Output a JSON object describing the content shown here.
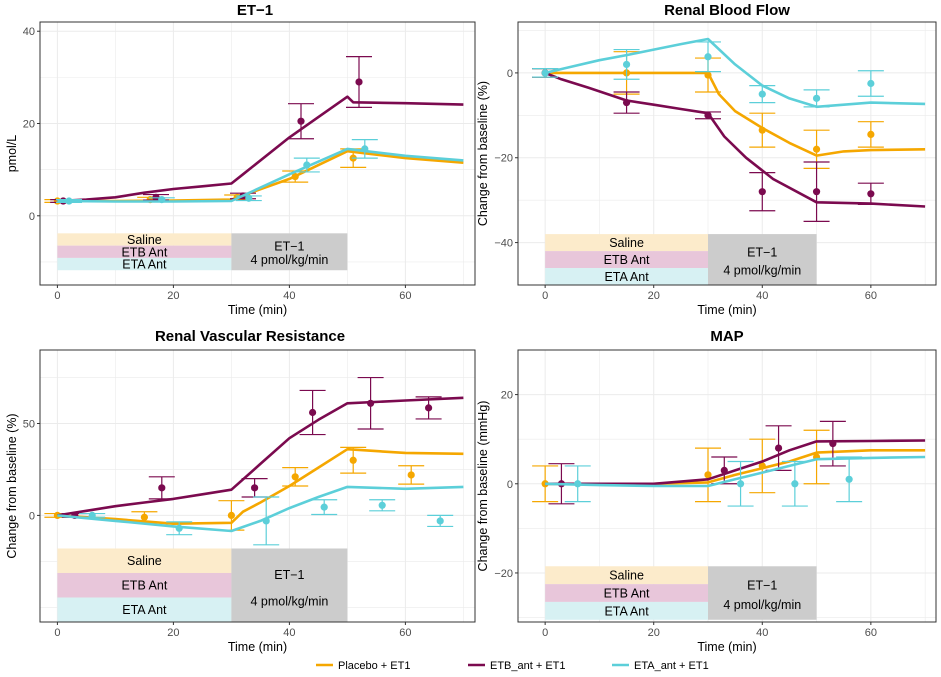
{
  "colors": {
    "placebo": "#F5A700",
    "etb": "#7B0A4F",
    "eta": "#5CCFD9",
    "saline_band": "#FCEBCB",
    "etb_band": "#E8C6DA",
    "eta_band": "#D7F1F3",
    "et1_band": "#CCCCCC",
    "grid": "#EBEBEB"
  },
  "legend": [
    {
      "key": "placebo",
      "label": "Placebo + ET1"
    },
    {
      "key": "etb",
      "label": "ETB_ant + ET1"
    },
    {
      "key": "eta",
      "label": "ETA_ant + ET1"
    }
  ],
  "treatment_box": {
    "saline": "Saline",
    "etb_ant": "ETB Ant",
    "eta_ant": "ETA Ant",
    "et1_line1": "ET−1",
    "et1_line2": "4 pmol/kg/min",
    "pre_start": 0,
    "pre_end": 30,
    "infusion_end": 50
  },
  "chart_data": [
    {
      "id": "et1",
      "type": "line",
      "title": "ET−1",
      "xlabel": "Time (min)",
      "ylabel": "pmol/L",
      "xlim": [
        -3,
        72
      ],
      "ylim": [
        -15,
        42
      ],
      "xticks": [
        0,
        20,
        40,
        60
      ],
      "yticks": [
        0,
        20,
        40
      ],
      "band_y": [
        -3.8,
        -11.8
      ],
      "series": [
        {
          "key": "placebo",
          "line": [
            [
              0,
              3.2
            ],
            [
              10,
              3.2
            ],
            [
              20,
              3.3
            ],
            [
              30,
              3.5
            ],
            [
              40,
              8
            ],
            [
              50,
              14
            ],
            [
              60,
              12.5
            ],
            [
              70,
              11.5
            ]
          ],
          "points": [
            [
              0,
              3.2,
              0.3
            ],
            [
              16,
              3.5,
              0.5
            ],
            [
              31,
              4,
              0.5
            ],
            [
              41,
              8.5,
              1.2
            ],
            [
              51,
              12.5,
              2
            ]
          ]
        },
        {
          "key": "etb",
          "line": [
            [
              0,
              3.2
            ],
            [
              5,
              3.5
            ],
            [
              10,
              4
            ],
            [
              15,
              5
            ],
            [
              20,
              5.8
            ],
            [
              25,
              6.4
            ],
            [
              30,
              7
            ],
            [
              32,
              9
            ],
            [
              40,
              17
            ],
            [
              50,
              25.8
            ],
            [
              51,
              24.6
            ],
            [
              60,
              24.4
            ],
            [
              70,
              24.1
            ]
          ],
          "points": [
            [
              1,
              3.2,
              0.3
            ],
            [
              17,
              4,
              0.6
            ],
            [
              32,
              4.3,
              0.6
            ],
            [
              42,
              20.5,
              3.8
            ],
            [
              52,
              29,
              5.5
            ]
          ]
        },
        {
          "key": "eta",
          "line": [
            [
              0,
              3.2
            ],
            [
              10,
              3.1
            ],
            [
              20,
              3.1
            ],
            [
              30,
              3.2
            ],
            [
              40,
              9
            ],
            [
              50,
              14.5
            ],
            [
              60,
              13
            ],
            [
              70,
              12
            ]
          ],
          "points": [
            [
              2,
              3.2,
              0.3
            ],
            [
              18,
              3.5,
              0.4
            ],
            [
              33,
              3.8,
              0.5
            ],
            [
              43,
              11,
              1.5
            ],
            [
              53,
              14.5,
              2
            ]
          ]
        }
      ]
    },
    {
      "id": "rbf",
      "type": "line",
      "title": "Renal Blood Flow",
      "xlabel": "Time (min)",
      "ylabel": "Change from baseline (%)",
      "xlim": [
        -5,
        72
      ],
      "ylim": [
        -50,
        12
      ],
      "xticks": [
        0,
        20,
        40,
        60
      ],
      "yticks": [
        0,
        -20,
        -40
      ],
      "band_y": [
        -38,
        -50
      ],
      "series": [
        {
          "key": "placebo",
          "line": [
            [
              0,
              0
            ],
            [
              10,
              0
            ],
            [
              20,
              0
            ],
            [
              30,
              0
            ],
            [
              32,
              -5
            ],
            [
              35,
              -9
            ],
            [
              40,
              -13
            ],
            [
              45,
              -16.5
            ],
            [
              50,
              -19.5
            ],
            [
              55,
              -18.5
            ],
            [
              60,
              -18.2
            ],
            [
              70,
              -18
            ]
          ],
          "points": [
            [
              0,
              0,
              1
            ],
            [
              15,
              0,
              5
            ],
            [
              30,
              -0.5,
              4
            ],
            [
              40,
              -13.5,
              4
            ],
            [
              50,
              -18,
              4.5
            ],
            [
              60,
              -14.5,
              3
            ]
          ]
        },
        {
          "key": "etb",
          "line": [
            [
              0,
              0
            ],
            [
              3,
              -1.5
            ],
            [
              8,
              -3.5
            ],
            [
              15,
              -6.5
            ],
            [
              20,
              -7.5
            ],
            [
              25,
              -8.5
            ],
            [
              30,
              -9.5
            ],
            [
              33,
              -15
            ],
            [
              37,
              -20
            ],
            [
              42,
              -25
            ],
            [
              50,
              -30.5
            ],
            [
              60,
              -30.8
            ],
            [
              70,
              -31.5
            ]
          ],
          "points": [
            [
              0,
              0,
              1
            ],
            [
              15,
              -7,
              2.5
            ],
            [
              30,
              -10,
              0.8
            ],
            [
              40,
              -28,
              4.5
            ],
            [
              50,
              -28,
              7
            ],
            [
              60,
              -28.5,
              2.5
            ]
          ]
        },
        {
          "key": "eta",
          "line": [
            [
              0,
              0
            ],
            [
              5,
              1.5
            ],
            [
              10,
              3
            ],
            [
              15,
              4.2
            ],
            [
              20,
              5.5
            ],
            [
              25,
              6.8
            ],
            [
              30,
              8
            ],
            [
              35,
              2
            ],
            [
              40,
              -3
            ],
            [
              45,
              -6
            ],
            [
              50,
              -8
            ],
            [
              60,
              -7
            ],
            [
              70,
              -7.3
            ]
          ],
          "points": [
            [
              0,
              0,
              1
            ],
            [
              15,
              2,
              3.5
            ],
            [
              30,
              3.8,
              3.5
            ],
            [
              40,
              -5,
              2
            ],
            [
              50,
              -6,
              2
            ],
            [
              60,
              -2.5,
              3
            ]
          ]
        }
      ]
    },
    {
      "id": "rvr",
      "type": "line",
      "title": "Renal Vascular Resistance",
      "xlabel": "Time (min)",
      "ylabel": "Change from baseline (%)",
      "xlim": [
        -3,
        72
      ],
      "ylim": [
        -58,
        90
      ],
      "xticks": [
        0,
        20,
        40,
        60
      ],
      "yticks": [
        0,
        50
      ],
      "band_y": [
        -18,
        -58
      ],
      "series": [
        {
          "key": "placebo",
          "line": [
            [
              0,
              0
            ],
            [
              10,
              -2
            ],
            [
              20,
              -4.5
            ],
            [
              30,
              -4
            ],
            [
              32,
              2
            ],
            [
              35,
              7
            ],
            [
              40,
              16
            ],
            [
              45,
              26
            ],
            [
              50,
              36
            ],
            [
              55,
              35
            ],
            [
              60,
              34
            ],
            [
              70,
              33.5
            ]
          ],
          "points": [
            [
              0,
              0,
              1
            ],
            [
              15,
              -1,
              3
            ],
            [
              30,
              0,
              8
            ],
            [
              41,
              21,
              5
            ],
            [
              51,
              30,
              7
            ],
            [
              61,
              22,
              5
            ]
          ]
        },
        {
          "key": "etb",
          "line": [
            [
              0,
              0
            ],
            [
              5,
              2.5
            ],
            [
              10,
              5
            ],
            [
              15,
              7
            ],
            [
              20,
              9
            ],
            [
              25,
              11.5
            ],
            [
              30,
              14
            ],
            [
              35,
              28
            ],
            [
              40,
              42
            ],
            [
              45,
              52
            ],
            [
              50,
              61
            ],
            [
              60,
              62.5
            ],
            [
              70,
              64
            ]
          ],
          "points": [
            [
              3,
              0,
              1
            ],
            [
              18,
              15,
              6
            ],
            [
              34,
              15,
              5
            ],
            [
              44,
              56,
              12
            ],
            [
              54,
              61,
              14
            ],
            [
              64,
              58.5,
              6
            ]
          ]
        },
        {
          "key": "eta",
          "line": [
            [
              0,
              0
            ],
            [
              10,
              -3
            ],
            [
              20,
              -6
            ],
            [
              30,
              -8.5
            ],
            [
              35,
              -3
            ],
            [
              40,
              4
            ],
            [
              45,
              10
            ],
            [
              50,
              15.5
            ],
            [
              60,
              14.5
            ],
            [
              70,
              15.5
            ]
          ],
          "points": [
            [
              6,
              0,
              1
            ],
            [
              21,
              -7,
              3.5
            ],
            [
              36,
              -3,
              13
            ],
            [
              46,
              4.5,
              4
            ],
            [
              56,
              5.5,
              3
            ],
            [
              66,
              -3,
              3
            ]
          ]
        }
      ]
    },
    {
      "id": "map",
      "type": "line",
      "title": "MAP",
      "xlabel": "Time (min)",
      "ylabel": "Change from baseline (mmHg)",
      "xlim": [
        -5,
        72
      ],
      "ylim": [
        -31,
        30
      ],
      "xticks": [
        0,
        20,
        40,
        60
      ],
      "yticks": [
        20,
        0,
        -20
      ],
      "band_y": [
        -18.5,
        -30.5
      ],
      "series": [
        {
          "key": "placebo",
          "line": [
            [
              0,
              0
            ],
            [
              10,
              0
            ],
            [
              20,
              0
            ],
            [
              30,
              0.3
            ],
            [
              35,
              2
            ],
            [
              40,
              3.5
            ],
            [
              45,
              5
            ],
            [
              50,
              7
            ],
            [
              60,
              7.5
            ],
            [
              70,
              7.5
            ]
          ],
          "points": [
            [
              0,
              0,
              4
            ],
            [
              30,
              2,
              6
            ],
            [
              40,
              4,
              6
            ],
            [
              50,
              6,
              6
            ]
          ]
        },
        {
          "key": "etb",
          "line": [
            [
              0,
              0
            ],
            [
              10,
              0
            ],
            [
              20,
              0
            ],
            [
              30,
              1
            ],
            [
              35,
              3
            ],
            [
              40,
              5
            ],
            [
              45,
              7.5
            ],
            [
              50,
              9.5
            ],
            [
              60,
              9.6
            ],
            [
              70,
              9.7
            ]
          ],
          "points": [
            [
              3,
              0,
              4.5
            ],
            [
              33,
              3,
              3
            ],
            [
              43,
              8,
              5
            ],
            [
              53,
              9,
              5
            ]
          ]
        },
        {
          "key": "eta",
          "line": [
            [
              0,
              0
            ],
            [
              10,
              -0.3
            ],
            [
              20,
              -0.5
            ],
            [
              30,
              -0.5
            ],
            [
              35,
              1
            ],
            [
              40,
              2.5
            ],
            [
              45,
              4
            ],
            [
              50,
              5.5
            ],
            [
              60,
              5.8
            ],
            [
              70,
              6
            ]
          ],
          "points": [
            [
              6,
              0,
              4
            ],
            [
              36,
              0,
              5
            ],
            [
              46,
              0,
              5
            ],
            [
              56,
              1,
              5
            ]
          ]
        }
      ]
    }
  ]
}
